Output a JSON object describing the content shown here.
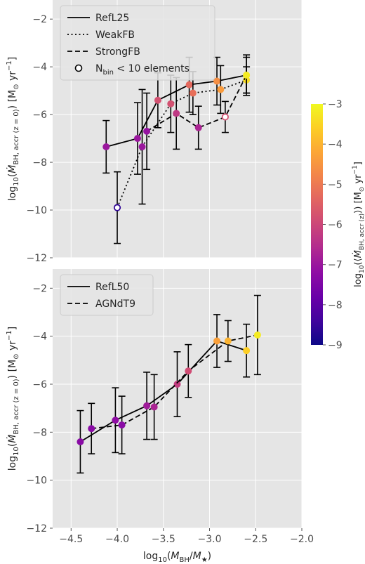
{
  "chart_data": [
    {
      "type": "scatter",
      "panel": "top",
      "xlim": [
        -4.7,
        -2.0
      ],
      "ylim": [
        -12,
        -1.2
      ],
      "ylabel": "log₁₀(Ṁ_BH, accr (z = 0)) [M⊙ yr⁻¹]",
      "yticks": [
        "−2",
        "−4",
        "−6",
        "−8",
        "−10",
        "−12"
      ],
      "ytick_values": [
        -2,
        -4,
        -6,
        -8,
        -10,
        -12
      ],
      "grid": true,
      "legend_position": "upper-left",
      "legend": [
        {
          "label": "RefL25",
          "style": "solid"
        },
        {
          "label": "WeakFB",
          "style": "dotted"
        },
        {
          "label": "StrongFB",
          "style": "dashed"
        },
        {
          "label": "N_bin < 10 elements",
          "style": "open-marker",
          "main": "N",
          "sub": "bin",
          "rest": " < 10 elements"
        }
      ],
      "series": [
        {
          "name": "RefL25",
          "style": "solid",
          "points": [
            {
              "x": -4.12,
              "y": -7.35,
              "c": -7.0,
              "err": 1.1
            },
            {
              "x": -3.78,
              "y": -7.0,
              "c": -7.0,
              "err": 1.5
            },
            {
              "x": -3.56,
              "y": -5.4,
              "c": -5.8,
              "err": 1.15
            },
            {
              "x": -3.22,
              "y": -4.75,
              "c": -5.3,
              "err": 1.15
            },
            {
              "x": -2.92,
              "y": -4.6,
              "c": -4.6,
              "err": 1.0
            },
            {
              "x": -2.6,
              "y": -4.35,
              "c": -3.3,
              "err": 0.85
            }
          ]
        },
        {
          "name": "WeakFB",
          "style": "dotted",
          "points": [
            {
              "x": -4.0,
              "y": -9.9,
              "c": -8.6,
              "err": 1.5,
              "open": true
            },
            {
              "x": -3.73,
              "y": -7.35,
              "c": -7.0,
              "err": 2.4
            },
            {
              "x": -3.42,
              "y": -5.55,
              "c": -5.8,
              "err": 1.2
            },
            {
              "x": -3.18,
              "y": -5.1,
              "c": -5.2,
              "err": 0.9
            },
            {
              "x": -2.88,
              "y": -4.95,
              "c": -4.4,
              "err": 1.0
            },
            {
              "x": -2.6,
              "y": -4.55,
              "c": -3.4,
              "err": 0.55
            }
          ]
        },
        {
          "name": "StrongFB",
          "style": "dashed",
          "points": [
            {
              "x": -3.68,
              "y": -6.7,
              "c": -7.1,
              "err": 1.6
            },
            {
              "x": -3.36,
              "y": -5.95,
              "c": -6.3,
              "err": 1.5
            },
            {
              "x": -3.12,
              "y": -6.55,
              "c": -6.7,
              "err": 0.9
            },
            {
              "x": -2.83,
              "y": -6.1,
              "c": -5.8,
              "err": 0.65,
              "open": true
            },
            {
              "x": -2.6,
              "y": -4.35,
              "c": -3.2,
              "err": 0.75
            }
          ]
        }
      ]
    },
    {
      "type": "scatter",
      "panel": "bottom",
      "xlim": [
        -4.7,
        -2.0
      ],
      "ylim": [
        -12,
        -1.2
      ],
      "xlabel": "log₁₀(M_BH/M★)",
      "ylabel": "log₁₀(Ṁ_BH, accr (z = 0)) [M⊙ yr⁻¹]",
      "xticks": [
        "−4.5",
        "−4.0",
        "−3.5",
        "−3.0",
        "−2.5",
        "−2.0"
      ],
      "xtick_values": [
        -4.5,
        -4.0,
        -3.5,
        -3.0,
        -2.5,
        -2.0
      ],
      "yticks": [
        "−2",
        "−4",
        "−6",
        "−8",
        "−10",
        "−12"
      ],
      "ytick_values": [
        -2,
        -4,
        -6,
        -8,
        -10,
        -12
      ],
      "grid": true,
      "legend_position": "upper-left",
      "legend": [
        {
          "label": "RefL50",
          "style": "solid"
        },
        {
          "label": "AGNdT9",
          "style": "dashed"
        }
      ],
      "series": [
        {
          "name": "RefL50",
          "style": "solid",
          "points": [
            {
              "x": -4.4,
              "y": -8.4,
              "c": -7.3,
              "err": 1.3
            },
            {
              "x": -4.02,
              "y": -7.5,
              "c": -7.2,
              "err": 1.35
            },
            {
              "x": -3.68,
              "y": -6.9,
              "c": -6.9,
              "err": 1.4
            },
            {
              "x": -3.35,
              "y": -6.0,
              "c": -6.2,
              "err": 1.35
            },
            {
              "x": -2.92,
              "y": -4.2,
              "c": -4.3,
              "err": 1.1
            },
            {
              "x": -2.6,
              "y": -4.6,
              "c": -3.6,
              "err": 1.1
            }
          ]
        },
        {
          "name": "AGNdT9",
          "style": "dashed",
          "points": [
            {
              "x": -4.28,
              "y": -7.85,
              "c": -7.3,
              "err": 1.05
            },
            {
              "x": -3.95,
              "y": -7.7,
              "c": -7.3,
              "err": 1.2
            },
            {
              "x": -3.6,
              "y": -6.95,
              "c": -6.7,
              "err": 1.35
            },
            {
              "x": -3.23,
              "y": -5.45,
              "c": -5.9,
              "err": 1.1
            },
            {
              "x": -2.8,
              "y": -4.2,
              "c": -4.0,
              "err": 0.85
            },
            {
              "x": -2.48,
              "y": -3.95,
              "c": -3.2,
              "err": 1.65
            }
          ]
        }
      ]
    }
  ],
  "colorbar": {
    "label": "log₁₀(⟨Ṁ_BH, accr (z)⟩) [M⊙ yr⁻¹]",
    "range": [
      -9,
      -3
    ],
    "ticks": [
      "−3",
      "−4",
      "−5",
      "−6",
      "−7",
      "−8",
      "−9"
    ],
    "tick_values": [
      -3,
      -4,
      -5,
      -6,
      -7,
      -8,
      -9
    ],
    "colormap": "plasma",
    "colormap_stops": [
      "#0d0887",
      "#41049d",
      "#6a00a8",
      "#8f0da4",
      "#b12a90",
      "#cc4778",
      "#e16462",
      "#f2844b",
      "#fca636",
      "#fcce25",
      "#f0f921"
    ]
  },
  "colors": {
    "plot_background": "#e5e5e5",
    "grid": "#ffffff",
    "line": "#000000"
  }
}
